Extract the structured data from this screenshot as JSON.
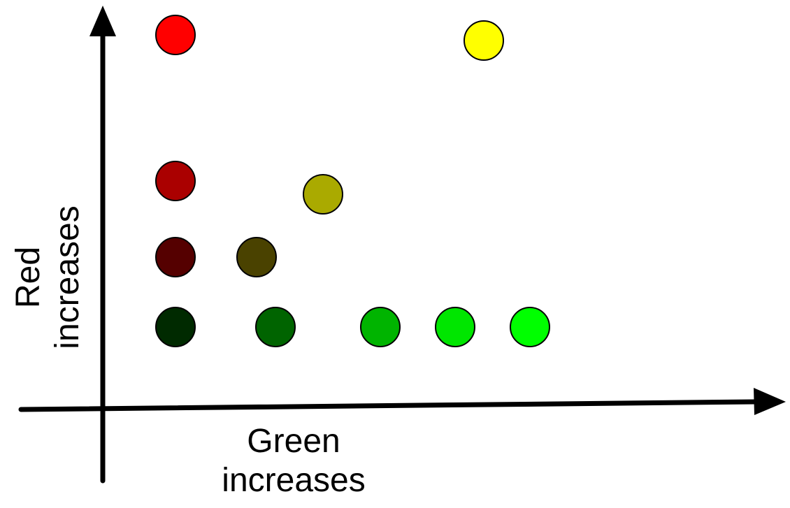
{
  "axes": {
    "x_label": [
      "Green",
      "increases"
    ],
    "y_label": [
      "Red",
      "increases"
    ]
  },
  "dots": [
    {
      "color": "#ff0000"
    },
    {
      "color": "#ffff00"
    },
    {
      "color": "#aa0000"
    },
    {
      "color": "#aaaa00"
    },
    {
      "color": "#550000"
    },
    {
      "color": "#4a4200"
    },
    {
      "color": "#002a00"
    },
    {
      "color": "#006400"
    },
    {
      "color": "#00b400"
    },
    {
      "color": "#00e600"
    },
    {
      "color": "#00ff00"
    }
  ]
}
